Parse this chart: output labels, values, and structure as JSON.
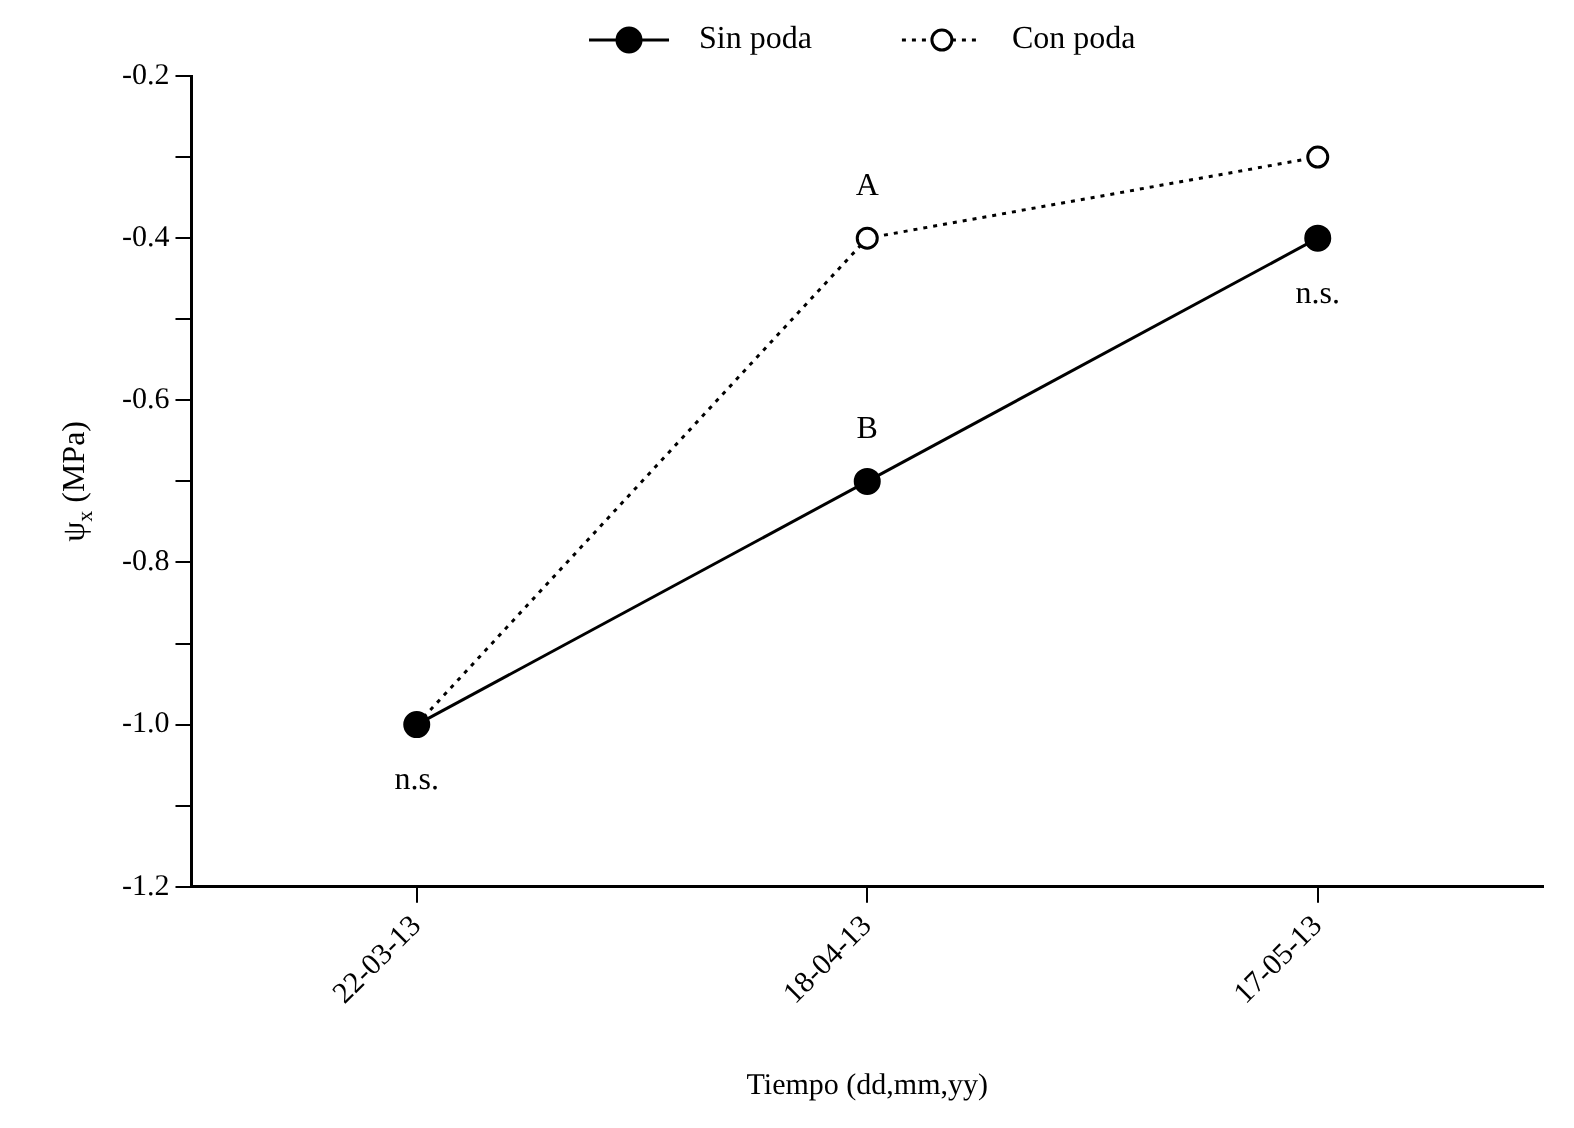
{
  "chart_data": {
    "type": "line",
    "xlabel": "Tiempo (dd,mm,yy)",
    "ylabel": "ψ$_{x}$ (MPa)",
    "categories": [
      "22-03-13",
      "18-04-13",
      "17-05-13"
    ],
    "series": [
      {
        "name": "Sin poda",
        "color": "#000000",
        "values": [
          -1.0,
          -0.7,
          -0.4
        ],
        "line_style": "solid",
        "marker": "circle"
      },
      {
        "name": "Con poda",
        "color": "#000000",
        "values": [
          -1.0,
          -0.4,
          -0.3
        ],
        "line_style": "dotted",
        "marker": "circle"
      }
    ],
    "ylim": [
      -1.2,
      -0.2
    ],
    "yticks": [
      -1.2,
      {
        "value": -1.1,
        "label": null
      },
      {
        "value": -1.0,
        "label": "-1.0"
      },
      {
        "value": -0.9,
        "label": null
      },
      -0.8,
      {
        "value": -0.7,
        "label": null
      },
      -0.6,
      {
        "value": -0.5,
        "label": null
      },
      -0.4,
      {
        "value": -0.3,
        "label": null
      },
      -0.2
    ],
    "annotations": [
      {
        "text": "A",
        "x": "18-04-13",
        "y": -0.4
      },
      {
        "text": "B",
        "x": "18-04-13",
        "y": -0.7
      },
      {
        "text": "n.s.",
        "x": "22-03-13",
        "y": -1.0
      },
      {
        "text": "n.s.",
        "x": "17-05-13",
        "y": -0.4
      }
    ],
    "grid": false,
    "legend": "top"
  }
}
